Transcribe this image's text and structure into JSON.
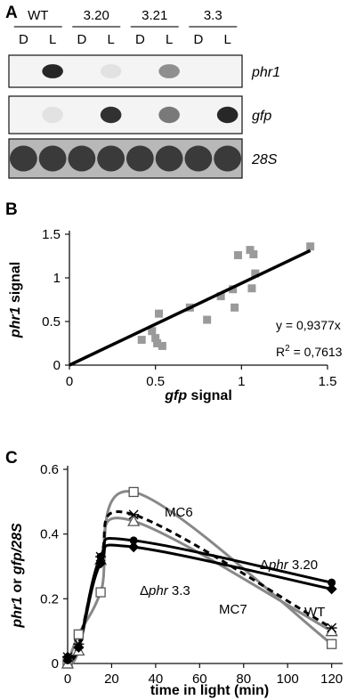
{
  "panels": {
    "a": {
      "letter": "A",
      "strains": [
        "WT",
        "3.20",
        "3.21",
        "3.3"
      ],
      "lanes": [
        "D",
        "L",
        "D",
        "L",
        "D",
        "L",
        "D",
        "L"
      ],
      "blots": [
        {
          "label": "phr1",
          "italic": true,
          "intensities": [
            0,
            0.95,
            0,
            0.05,
            0,
            0.45,
            0,
            0
          ]
        },
        {
          "label": "gfp",
          "italic": true,
          "intensities": [
            0,
            0.05,
            0,
            0.9,
            0,
            0.55,
            0,
            0.95
          ]
        },
        {
          "label": "28S",
          "italic": true,
          "intensities": [
            0.8,
            0.8,
            0.8,
            0.8,
            0.8,
            0.8,
            0.8,
            0.8
          ]
        }
      ]
    },
    "b": {
      "letter": "B"
    },
    "c": {
      "letter": "C"
    }
  },
  "chart_data": [
    {
      "type": "scatter",
      "panel": "B",
      "xlabel_italic": "gfp",
      "xlabel_rest": " signal",
      "ylabel_italic": "phr1",
      "ylabel_rest": " signal",
      "xlim": [
        0,
        1.5
      ],
      "ylim": [
        0,
        1.5
      ],
      "xticks": [
        0,
        0.5,
        1,
        1.5
      ],
      "xtick_labels": [
        "0",
        "0.5",
        "1",
        "1.5"
      ],
      "yticks": [
        0,
        0.5,
        1,
        1.5
      ],
      "ytick_labels": [
        "0",
        "0.5",
        "1",
        "1.5"
      ],
      "points": [
        {
          "x": 0.42,
          "y": 0.29
        },
        {
          "x": 0.48,
          "y": 0.39
        },
        {
          "x": 0.5,
          "y": 0.31
        },
        {
          "x": 0.51,
          "y": 0.25
        },
        {
          "x": 0.52,
          "y": 0.59
        },
        {
          "x": 0.54,
          "y": 0.22
        },
        {
          "x": 0.7,
          "y": 0.66
        },
        {
          "x": 0.8,
          "y": 0.52
        },
        {
          "x": 0.88,
          "y": 0.79
        },
        {
          "x": 0.95,
          "y": 0.87
        },
        {
          "x": 0.98,
          "y": 1.26
        },
        {
          "x": 1.05,
          "y": 1.32
        },
        {
          "x": 1.07,
          "y": 1.27
        },
        {
          "x": 1.08,
          "y": 1.05
        },
        {
          "x": 0.96,
          "y": 0.66
        },
        {
          "x": 1.06,
          "y": 0.88
        },
        {
          "x": 1.4,
          "y": 1.36
        }
      ],
      "point_color": "#9a9a9a",
      "fit": {
        "slope": 0.9377,
        "from": 0,
        "to": 1.4
      },
      "equation": "y = 0,9377x",
      "r2_label": "R",
      "r2_sup": "2",
      "r2_value": " = 0,7613"
    },
    {
      "type": "line",
      "panel": "C",
      "xlabel": "time in light (min)",
      "ylabel_italic_1": "phr1",
      "ylabel_mid": " or ",
      "ylabel_italic_2": "gfp/28S",
      "xlim": [
        0,
        125
      ],
      "ylim": [
        0,
        0.6
      ],
      "xticks": [
        0,
        20,
        40,
        60,
        80,
        100,
        120
      ],
      "xtick_labels": [
        "0",
        "20",
        "40",
        "60",
        "80",
        "100",
        "120"
      ],
      "yticks": [
        0,
        0.2,
        0.4,
        0.6
      ],
      "ytick_labels": [
        "0",
        "0.2",
        "0.4",
        "0.6"
      ],
      "x": [
        0,
        5,
        15,
        30,
        120
      ],
      "series": [
        {
          "name": "MC6",
          "values": [
            0.0,
            0.09,
            0.22,
            0.53,
            0.06
          ],
          "color": "#888888",
          "dash": false,
          "marker": "open-square",
          "label_text": "MC6",
          "label_prefix": ""
        },
        {
          "name": "MC7",
          "values": [
            0.0,
            0.04,
            0.32,
            0.44,
            0.1
          ],
          "color": "#888888",
          "dash": false,
          "marker": "open-triangle",
          "label_text": "MC7",
          "label_prefix": ""
        },
        {
          "name": "WT",
          "values": [
            0.02,
            0.06,
            0.33,
            0.46,
            0.11
          ],
          "color": "#000000",
          "dash": true,
          "marker": "star",
          "label_text": "WT",
          "label_prefix": ""
        },
        {
          "name": "Δphr 3.20",
          "values": [
            0.01,
            0.05,
            0.33,
            0.38,
            0.25
          ],
          "color": "#000000",
          "dash": false,
          "marker": "filled-circle",
          "label_text": "phr 3.20",
          "label_prefix": "Δ"
        },
        {
          "name": "Δphr 3.3",
          "values": [
            0.02,
            0.05,
            0.31,
            0.36,
            0.23
          ],
          "color": "#000000",
          "dash": false,
          "marker": "filled-diamond",
          "label_text": "phr 3.3",
          "label_prefix": "Δ"
        }
      ]
    }
  ]
}
